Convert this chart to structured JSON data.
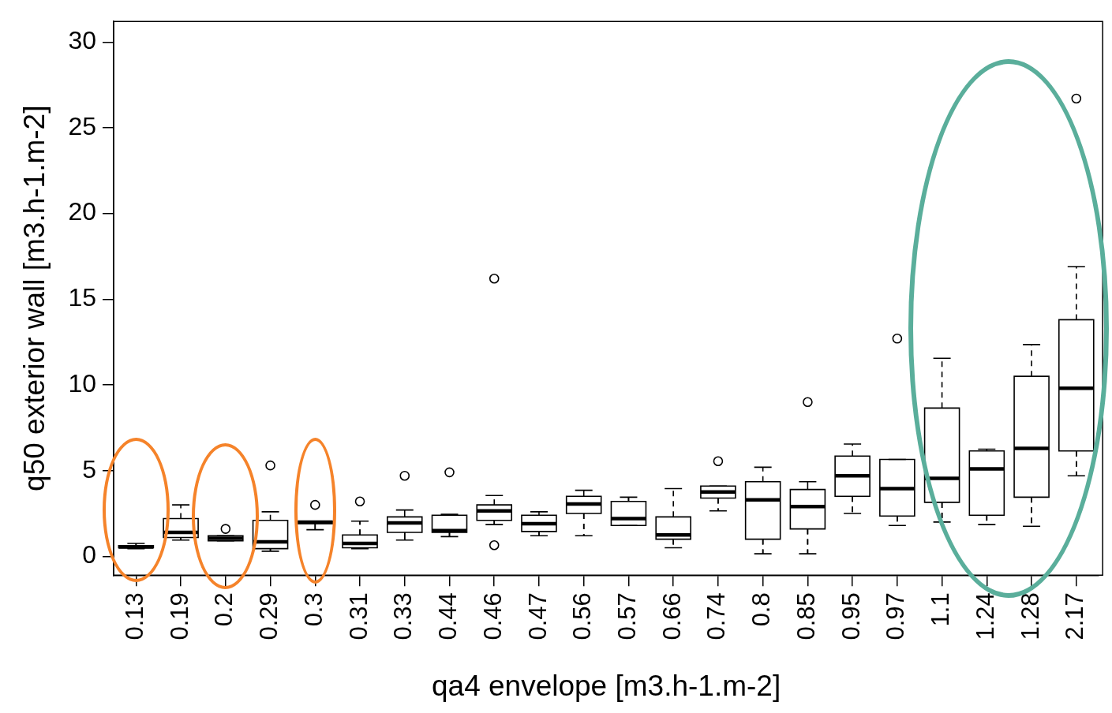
{
  "chart_data": {
    "type": "box",
    "xlabel": "qa4 envelope [m3.h-1.m-2]",
    "ylabel": "q50 exterior wall [m3.h-1.m-2]",
    "categories": [
      "0.13",
      "0.19",
      "0.2",
      "0.29",
      "0.3",
      "0.31",
      "0.33",
      "0.44",
      "0.46",
      "0.47",
      "0.56",
      "0.57",
      "0.66",
      "0.74",
      "0.8",
      "0.85",
      "0.95",
      "0.97",
      "1.1",
      "1.24",
      "1.28",
      "2.17"
    ],
    "boxes": [
      {
        "low": 0.45,
        "q1": 0.5,
        "median": 0.55,
        "q3": 0.62,
        "high": 0.75
      },
      {
        "low": 0.95,
        "q1": 1.1,
        "median": 1.4,
        "q3": 2.2,
        "high": 3.0
      },
      {
        "low": 0.9,
        "q1": 0.9,
        "median": 1.05,
        "q3": 1.2,
        "high": 1.2,
        "outliers": [
          1.6
        ]
      },
      {
        "low": 0.3,
        "q1": 0.45,
        "median": 0.85,
        "q3": 2.1,
        "high": 2.6,
        "outliers": [
          5.3
        ]
      },
      {
        "low": 1.55,
        "q1": 1.9,
        "median": 2.0,
        "q3": 2.05,
        "high": 2.05,
        "outliers": [
          3.0
        ]
      },
      {
        "low": 0.45,
        "q1": 0.5,
        "median": 0.75,
        "q3": 1.25,
        "high": 2.05,
        "outliers": [
          3.2
        ]
      },
      {
        "low": 0.95,
        "q1": 1.4,
        "median": 1.95,
        "q3": 2.3,
        "high": 2.7,
        "outliers": [
          4.7
        ]
      },
      {
        "low": 1.15,
        "q1": 1.4,
        "median": 1.5,
        "q3": 2.4,
        "high": 2.45,
        "outliers": [
          4.9
        ]
      },
      {
        "low": 1.85,
        "q1": 2.1,
        "median": 2.65,
        "q3": 3.0,
        "high": 3.55,
        "outliers": [
          16.2,
          0.65
        ]
      },
      {
        "low": 1.2,
        "q1": 1.45,
        "median": 1.9,
        "q3": 2.4,
        "high": 2.6
      },
      {
        "low": 1.2,
        "q1": 2.5,
        "median": 3.05,
        "q3": 3.5,
        "high": 3.85
      },
      {
        "low": 1.8,
        "q1": 1.8,
        "median": 2.2,
        "q3": 3.2,
        "high": 3.45
      },
      {
        "low": 0.5,
        "q1": 1.0,
        "median": 1.25,
        "q3": 2.3,
        "high": 3.95
      },
      {
        "low": 2.65,
        "q1": 3.4,
        "median": 3.75,
        "q3": 4.1,
        "high": 4.1,
        "outliers": [
          5.55
        ]
      },
      {
        "low": 0.15,
        "q1": 1.0,
        "median": 3.3,
        "q3": 4.35,
        "high": 5.2
      },
      {
        "low": 0.15,
        "q1": 1.6,
        "median": 2.9,
        "q3": 3.9,
        "high": 4.35,
        "outliers": [
          9.0
        ]
      },
      {
        "low": 2.5,
        "q1": 3.5,
        "median": 4.7,
        "q3": 5.85,
        "high": 6.55
      },
      {
        "low": 1.8,
        "q1": 2.35,
        "median": 3.95,
        "q3": 5.65,
        "high": 5.65,
        "outliers": [
          12.7
        ]
      },
      {
        "low": 2.0,
        "q1": 3.15,
        "median": 4.55,
        "q3": 8.65,
        "high": 11.55
      },
      {
        "low": 1.85,
        "q1": 2.4,
        "median": 5.1,
        "q3": 6.15,
        "high": 6.25
      },
      {
        "low": 1.75,
        "q1": 3.45,
        "median": 6.3,
        "q3": 10.5,
        "high": 12.35
      },
      {
        "low": 4.7,
        "q1": 6.15,
        "median": 9.8,
        "q3": 13.8,
        "high": 16.9,
        "outliers": [
          26.7
        ]
      }
    ],
    "ylim": [
      -1.1,
      31.2
    ],
    "yticks": [
      0,
      5,
      10,
      15,
      20,
      25,
      30
    ],
    "grid": false
  }
}
